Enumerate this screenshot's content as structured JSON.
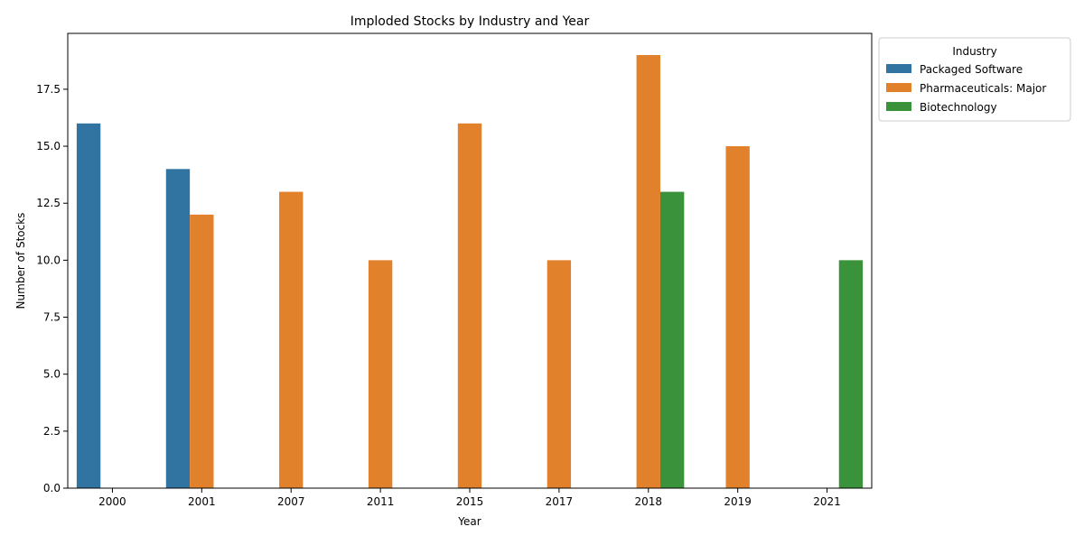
{
  "chart_data": {
    "type": "bar",
    "title": "Imploded Stocks by Industry and Year",
    "xlabel": "Year",
    "ylabel": "Number of Stocks",
    "categories": [
      "2000",
      "2001",
      "2007",
      "2011",
      "2015",
      "2017",
      "2018",
      "2019",
      "2021"
    ],
    "ylim": [
      0,
      19.95
    ],
    "yticks": [
      "0.0",
      "2.5",
      "5.0",
      "7.5",
      "10.0",
      "12.5",
      "15.0",
      "17.5"
    ],
    "legend": {
      "title": "Industry",
      "placement": "outside-top-right"
    },
    "grid": false,
    "series": [
      {
        "name": "Packaged Software",
        "color": "#3274a1",
        "values": [
          16,
          14,
          null,
          null,
          null,
          null,
          null,
          null,
          null
        ]
      },
      {
        "name": "Pharmaceuticals: Major",
        "color": "#e1812c",
        "values": [
          null,
          12,
          13,
          10,
          16,
          10,
          19,
          15,
          null
        ]
      },
      {
        "name": "Biotechnology",
        "color": "#3a923a",
        "values": [
          null,
          null,
          null,
          null,
          null,
          null,
          13,
          null,
          10
        ]
      }
    ]
  }
}
